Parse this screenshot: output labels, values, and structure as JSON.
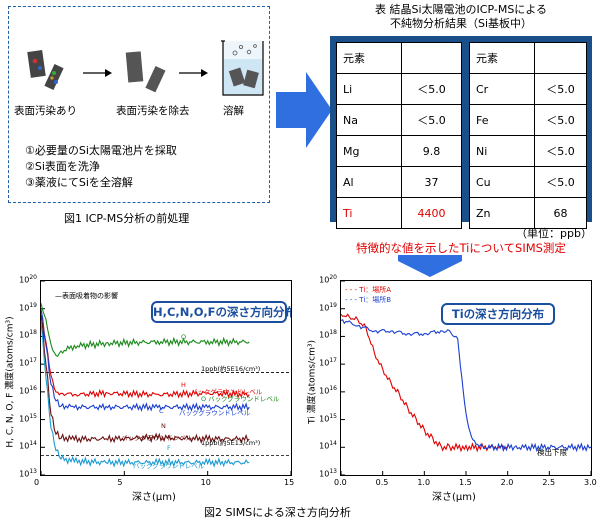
{
  "fig1": {
    "label_contaminated": "表面汚染あり",
    "label_removed": "表面汚染を除去",
    "label_dissolve": "溶解",
    "steps": [
      "①必要量のSi太陽電池片を採取",
      "②Si表面を洗浄",
      "③薬液にてSiを全溶解"
    ],
    "caption": "図1  ICP-MS分析の前処理"
  },
  "table": {
    "title_line1": "表  結晶Si太陽電池のICP-MSによる",
    "title_line2": "不純物分析結果（Si基板中）",
    "header_element": "元素",
    "left": [
      {
        "el": "Li",
        "val": "＜5.0"
      },
      {
        "el": "Na",
        "val": "＜5.0"
      },
      {
        "el": "Mg",
        "val": "9.8"
      },
      {
        "el": "Al",
        "val": "37"
      },
      {
        "el": "Ti",
        "val": "4400"
      }
    ],
    "right": [
      {
        "el": "Cr",
        "val": "＜5.0"
      },
      {
        "el": "Fe",
        "val": "＜5.0"
      },
      {
        "el": "Ni",
        "val": "＜5.0"
      },
      {
        "el": "Cu",
        "val": "＜5.0"
      },
      {
        "el": "Zn",
        "val": "68"
      }
    ],
    "unit": "（単位：ppb）",
    "highlight_color": "#e00000",
    "frame_color": "#1a4f8a"
  },
  "sims_note": "特徴的な値を示したTiについてSIMS測定",
  "chart_left": {
    "box_title": "H,C,N,O,Fの深さ方向分布",
    "ylabel": "H, C, N, O, F 濃度(atoms/cm³)",
    "xlabel": "深さ(μm)",
    "xlim": [
      0,
      15
    ],
    "ylim_exp": [
      13,
      20
    ],
    "x_ticks": [
      "0",
      "5",
      "10",
      "15"
    ],
    "y_exps": [
      "20",
      "19",
      "18",
      "17",
      "16",
      "15",
      "14",
      "13"
    ],
    "annot_surface": "表面吸着物の影響",
    "annot_1ppb_upper": "1ppb(約5E16/cm³)",
    "annot_1ppb_lower": "1ppb(約5E13/cm³)",
    "tags": {
      "O": "O",
      "H": "H",
      "H_bg": "バックグラウンドレベル",
      "O_bg": "O バックグラウンドレベル",
      "C": "C",
      "C_bg": "バックグラウンドレベル",
      "N": "N",
      "N_bg": "バックグラウンドレベル",
      "F": "F",
      "F_bg": "バックグラウンドレベル"
    },
    "series": [
      {
        "name": "O",
        "color": "#1a8a1a",
        "x": [
          0,
          0.3,
          0.6,
          0.9,
          1.2,
          2,
          4,
          7,
          10,
          12.5
        ],
        "log_y": [
          19.2,
          18.6,
          17.7,
          17.3,
          17.45,
          17.65,
          17.75,
          17.8,
          17.8,
          17.8
        ]
      },
      {
        "name": "H",
        "color": "#e00000",
        "x": [
          0,
          0.3,
          0.6,
          0.9,
          1.2,
          2,
          4,
          7,
          10,
          12.5
        ],
        "log_y": [
          19.0,
          17.8,
          16.6,
          16.0,
          15.95,
          15.9,
          15.95,
          15.9,
          15.95,
          15.9
        ]
      },
      {
        "name": "C",
        "color": "#1a3fd0",
        "x": [
          0,
          0.3,
          0.6,
          0.9,
          1.2,
          2,
          4,
          7,
          10,
          12.5
        ],
        "log_y": [
          19.0,
          17.7,
          16.3,
          15.7,
          15.5,
          15.45,
          15.45,
          15.45,
          15.45,
          15.45
        ]
      },
      {
        "name": "N",
        "color": "#6a1010",
        "x": [
          0,
          0.3,
          0.6,
          0.9,
          1.2,
          2,
          4,
          7,
          10,
          12.5
        ],
        "log_y": [
          18.8,
          17.0,
          15.2,
          14.5,
          14.35,
          14.3,
          14.3,
          14.35,
          14.3,
          14.3
        ]
      },
      {
        "name": "F",
        "color": "#1a9ad0",
        "x": [
          0,
          0.3,
          0.6,
          0.9,
          1.2,
          2,
          4,
          7,
          10,
          12.5
        ],
        "log_y": [
          18.5,
          16.5,
          14.7,
          13.9,
          13.6,
          13.5,
          13.45,
          13.45,
          13.45,
          13.45
        ]
      }
    ]
  },
  "chart_right": {
    "box_title": "Tiの深さ方向分布",
    "ylabel": "Ti 濃度(atoms/cm³)",
    "xlabel": "深さ(μm)",
    "xlim": [
      0,
      3.0
    ],
    "ylim_exp": [
      13,
      20
    ],
    "x_ticks": [
      "0.0",
      "0.5",
      "1.0",
      "1.5",
      "2.0",
      "2.5",
      "3.0"
    ],
    "y_exps": [
      "20",
      "19",
      "18",
      "17",
      "16",
      "15",
      "14",
      "13"
    ],
    "detection_limit": "検出下限",
    "legend": [
      "Ti：場所A",
      "Ti：場所B"
    ],
    "series": [
      {
        "name": "Ti：場所A",
        "color": "#e00000",
        "x": [
          0,
          0.1,
          0.2,
          0.3,
          0.4,
          0.5,
          0.6,
          0.7,
          0.8,
          0.9,
          1.0,
          1.1,
          1.2,
          1.3,
          1.5,
          2.0
        ],
        "log_y": [
          18.8,
          18.7,
          18.6,
          18.3,
          17.4,
          16.8,
          16.3,
          15.9,
          15.4,
          15.0,
          14.6,
          14.3,
          14.0,
          14.0,
          14.0,
          14.0
        ]
      },
      {
        "name": "Ti：場所B",
        "color": "#1a3fd0",
        "x": [
          0,
          0.2,
          0.4,
          0.6,
          0.8,
          1.0,
          1.2,
          1.3,
          1.4,
          1.45,
          1.5,
          1.55,
          1.6,
          1.7,
          2.1,
          3.0
        ],
        "log_y": [
          18.6,
          18.4,
          18.2,
          18.2,
          18.1,
          18.1,
          18.2,
          18.2,
          17.9,
          16.5,
          15.2,
          14.5,
          14.2,
          14.0,
          14.0,
          14.0
        ]
      }
    ]
  },
  "fig2_caption": "図2  SIMSによる深さ方向分析"
}
